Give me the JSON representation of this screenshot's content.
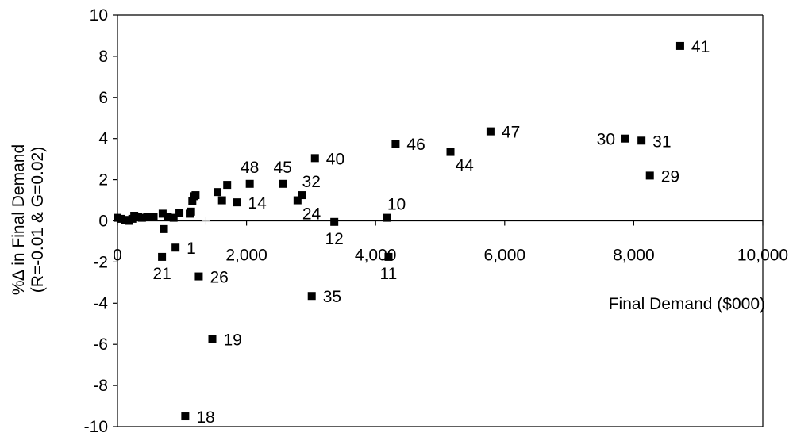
{
  "chart_data": {
    "type": "scatter",
    "xlabel": "Final Demand ($000)",
    "ylabel_lines": [
      "%∆ in Final Demand",
      "(R=-0.01 & G=0.02)"
    ],
    "xlim": [
      0,
      10000
    ],
    "ylim": [
      -10,
      10
    ],
    "x_ticks": [
      0,
      2000,
      4000,
      6000,
      8000,
      10000
    ],
    "x_tick_labels": [
      "0",
      "2,000",
      "4,000",
      "6,000",
      "8,000",
      "10,000"
    ],
    "y_ticks": [
      -10,
      -8,
      -6,
      -4,
      -2,
      0,
      2,
      4,
      6,
      8,
      10
    ],
    "y_tick_labels": [
      "-10",
      "-8",
      "-6",
      "-4",
      "-2",
      "0",
      "2",
      "4",
      "6",
      "8",
      "10"
    ],
    "grid": false,
    "marker": "square",
    "marker_color": "#000000",
    "labeled_points": [
      {
        "label": "41",
        "x": 8720,
        "y": 8.5,
        "label_pos": "right"
      },
      {
        "label": "47",
        "x": 5780,
        "y": 4.35,
        "label_pos": "right"
      },
      {
        "label": "46",
        "x": 4310,
        "y": 3.75,
        "label_pos": "right"
      },
      {
        "label": "44",
        "x": 5160,
        "y": 3.35,
        "label_pos": "below-right"
      },
      {
        "label": "30",
        "x": 7860,
        "y": 4.0,
        "label_pos": "left"
      },
      {
        "label": "31",
        "x": 8120,
        "y": 3.9,
        "label_pos": "right"
      },
      {
        "label": "29",
        "x": 8250,
        "y": 2.2,
        "label_pos": "right"
      },
      {
        "label": "40",
        "x": 3060,
        "y": 3.05,
        "label_pos": "right"
      },
      {
        "label": "48",
        "x": 2050,
        "y": 1.8,
        "label_pos": "above"
      },
      {
        "label": "45",
        "x": 2560,
        "y": 1.8,
        "label_pos": "above"
      },
      {
        "label": "32",
        "x": 2860,
        "y": 1.25,
        "label_pos": "above-right"
      },
      {
        "label": "24",
        "x": 2790,
        "y": 1.0,
        "label_pos": "below-right"
      },
      {
        "label": "14",
        "x": 1850,
        "y": 0.9,
        "label_pos": "right"
      },
      {
        "label": "10",
        "x": 4180,
        "y": 0.15,
        "label_pos": "above-right"
      },
      {
        "label": "12",
        "x": 3360,
        "y": -0.05,
        "label_pos": "below"
      },
      {
        "label": "11",
        "x": 4200,
        "y": -1.75,
        "label_pos": "below"
      },
      {
        "label": "1",
        "x": 900,
        "y": -1.3,
        "label_pos": "right"
      },
      {
        "label": "21",
        "x": 690,
        "y": -1.75,
        "label_pos": "below"
      },
      {
        "label": "26",
        "x": 1260,
        "y": -2.7,
        "label_pos": "right"
      },
      {
        "label": "35",
        "x": 3010,
        "y": -3.65,
        "label_pos": "right"
      },
      {
        "label": "19",
        "x": 1470,
        "y": -5.75,
        "label_pos": "right"
      },
      {
        "label": "18",
        "x": 1050,
        "y": -9.5,
        "label_pos": "right"
      }
    ],
    "unlabeled_points": [
      {
        "x": 0,
        "y": 0.15
      },
      {
        "x": 60,
        "y": 0.1
      },
      {
        "x": 120,
        "y": 0.05
      },
      {
        "x": 180,
        "y": 0.0
      },
      {
        "x": 230,
        "y": 0.1
      },
      {
        "x": 260,
        "y": 0.25
      },
      {
        "x": 320,
        "y": 0.2
      },
      {
        "x": 380,
        "y": 0.15
      },
      {
        "x": 460,
        "y": 0.2
      },
      {
        "x": 560,
        "y": 0.2
      },
      {
        "x": 700,
        "y": 0.35
      },
      {
        "x": 720,
        "y": -0.4
      },
      {
        "x": 780,
        "y": 0.2
      },
      {
        "x": 870,
        "y": 0.15
      },
      {
        "x": 960,
        "y": 0.4
      },
      {
        "x": 1120,
        "y": 0.35
      },
      {
        "x": 1140,
        "y": 0.45
      },
      {
        "x": 1160,
        "y": 0.95
      },
      {
        "x": 1190,
        "y": 1.2
      },
      {
        "x": 1210,
        "y": 1.25
      },
      {
        "x": 1550,
        "y": 1.4
      },
      {
        "x": 1620,
        "y": 1.0
      },
      {
        "x": 1700,
        "y": 1.75
      }
    ]
  }
}
